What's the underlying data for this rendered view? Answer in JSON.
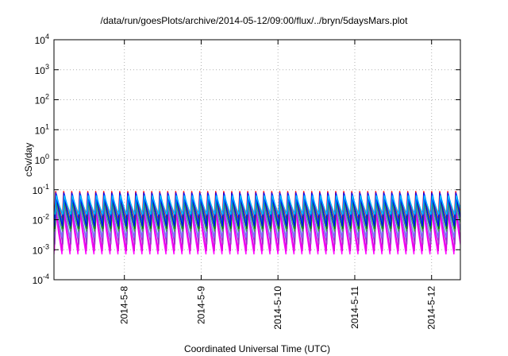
{
  "chart_data": {
    "type": "line",
    "title": "/data/run/goesPlots/archive/2014-05-12/09:00/flux/../bryn/5daysMars.plot",
    "xlabel": "Coordinated Universal Time (UTC)",
    "ylabel": "cSv/day",
    "yscale": "log",
    "ylim": [
      0.0001,
      10000
    ],
    "xlim": [
      "2014-05-07T02:00",
      "2014-05-12T09:00"
    ],
    "grid": true,
    "legend": "none",
    "y_ticks": [
      {
        "base": "10",
        "exp": "-4",
        "value": 0.0001
      },
      {
        "base": "10",
        "exp": "-3",
        "value": 0.001
      },
      {
        "base": "10",
        "exp": "-2",
        "value": 0.01
      },
      {
        "base": "10",
        "exp": "-1",
        "value": 0.1
      },
      {
        "base": "10",
        "exp": "0",
        "value": 1
      },
      {
        "base": "10",
        "exp": "1",
        "value": 10
      },
      {
        "base": "10",
        "exp": "2",
        "value": 100
      },
      {
        "base": "10",
        "exp": "3",
        "value": 1000
      },
      {
        "base": "10",
        "exp": "4",
        "value": 10000
      }
    ],
    "x_ticks": [
      {
        "label": "2014-5-8",
        "date": "2014-05-08T00:00"
      },
      {
        "label": "2014-5-9",
        "date": "2014-05-09T00:00"
      },
      {
        "label": "2014-5-10",
        "date": "2014-05-10T00:00"
      },
      {
        "label": "2014-5-11",
        "date": "2014-05-11T00:00"
      },
      {
        "label": "2014-5-12",
        "date": "2014-05-12T00:00"
      }
    ],
    "sawtooth_period_hours": 2.5,
    "series": [
      {
        "color": "#ff00ff",
        "peak": 0.025,
        "trough": 0.0007
      },
      {
        "color": "#e000e0",
        "peak": 0.03,
        "trough": 0.0009
      },
      {
        "color": "#9933cc",
        "peak": 0.035,
        "trough": 0.0015
      },
      {
        "color": "#7777ff",
        "peak": 0.04,
        "trough": 0.0025
      },
      {
        "color": "#33aa55",
        "peak": 0.045,
        "trough": 0.004
      },
      {
        "color": "#008000",
        "peak": 0.055,
        "trough": 0.005
      },
      {
        "color": "#ff0000",
        "peak": 0.09,
        "trough": 0.01
      },
      {
        "color": "#00aaaa",
        "peak": 0.06,
        "trough": 0.008
      },
      {
        "color": "#0066ff",
        "peak": 0.07,
        "trough": 0.012
      },
      {
        "color": "#0000ff",
        "peak": 0.08,
        "trough": 0.006
      },
      {
        "color": "#00bfff",
        "peak": 0.065,
        "trough": 0.015
      }
    ]
  }
}
